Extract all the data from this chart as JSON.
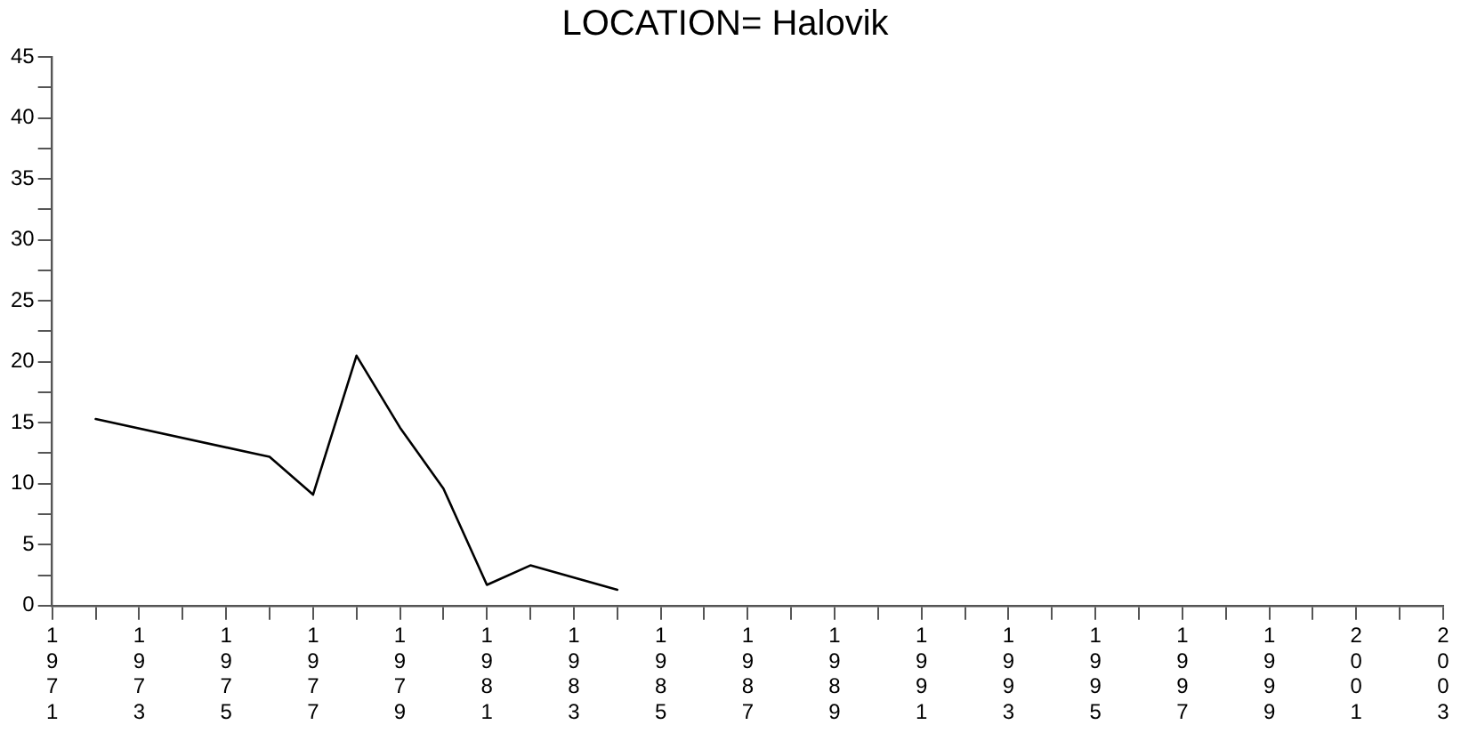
{
  "chart_data": {
    "type": "line",
    "title": "LOCATION= Halovik",
    "x": [
      1972,
      1976,
      1977,
      1978,
      1979,
      1980,
      1981,
      1982,
      1984
    ],
    "series": [
      {
        "color": "#000000",
        "values": [
          15.3,
          12.2,
          9.1,
          20.5,
          14.6,
          9.6,
          1.7,
          3.3,
          1.3
        ]
      }
    ],
    "xlim": [
      1971,
      2003
    ],
    "xticks": [
      1971,
      {
        "value": 1972,
        "label": null
      },
      1973,
      {
        "value": 1974,
        "label": null
      },
      1975,
      {
        "value": 1976,
        "label": null
      },
      1977,
      {
        "value": 1978,
        "label": null
      },
      1979,
      {
        "value": 1980,
        "label": null
      },
      1981,
      {
        "value": 1982,
        "label": null
      },
      1983,
      {
        "value": 1984,
        "label": null
      },
      1985,
      {
        "value": 1986,
        "label": null
      },
      1987,
      {
        "value": 1988,
        "label": null
      },
      1989,
      {
        "value": 1990,
        "label": null
      },
      1991,
      {
        "value": 1992,
        "label": null
      },
      1993,
      {
        "value": 1994,
        "label": null
      },
      1995,
      {
        "value": 1996,
        "label": null
      },
      1997,
      {
        "value": 1998,
        "label": null
      },
      1999,
      {
        "value": 2000,
        "label": null
      },
      2001,
      {
        "value": 2002,
        "label": null
      },
      2003
    ],
    "ylim": [
      0,
      45
    ],
    "yticks": [
      0,
      {
        "value": 2.5,
        "label": null
      },
      5,
      {
        "value": 7.5,
        "label": null
      },
      10,
      {
        "value": 12.5,
        "label": null
      },
      15,
      {
        "value": 17.5,
        "label": null
      },
      20,
      {
        "value": 22.5,
        "label": null
      },
      25,
      {
        "value": 27.5,
        "label": null
      },
      30,
      {
        "value": 32.5,
        "label": null
      },
      35,
      {
        "value": 37.5,
        "label": null
      },
      40,
      {
        "value": 42.5,
        "label": null
      },
      45
    ],
    "grid": false,
    "legend": false,
    "marker": "none",
    "line_style": "solid"
  }
}
